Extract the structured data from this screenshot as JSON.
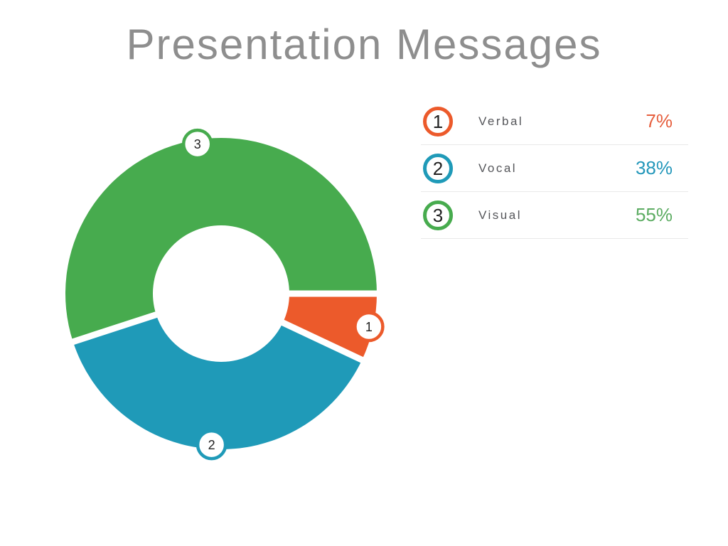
{
  "title": "Presentation Messages",
  "chart_data": {
    "type": "pie",
    "variant": "donut",
    "title": "Presentation Messages",
    "categories": [
      "Verbal",
      "Vocal",
      "Visual"
    ],
    "values": [
      7,
      38,
      55
    ],
    "unit": "%",
    "colors": [
      "#EC5A2B",
      "#1F9AB8",
      "#47AB4E"
    ],
    "slice_numbers": [
      "1",
      "2",
      "3"
    ],
    "start_angle_deg": 0,
    "direction": "clockwise",
    "inner_radius_ratio": 0.44,
    "legend_position": "right",
    "grid": false
  },
  "legend": {
    "items": [
      {
        "number": "1",
        "label": "Verbal",
        "percent": "7%",
        "color": "#EC5A2B",
        "percent_color": "#E65E3D"
      },
      {
        "number": "2",
        "label": "Vocal",
        "percent": "38%",
        "color": "#1F9AB8",
        "percent_color": "#2397BA"
      },
      {
        "number": "3",
        "label": "Visual",
        "percent": "55%",
        "color": "#47AB4E",
        "percent_color": "#5CAC62"
      }
    ]
  },
  "styles": {
    "title_color": "#8E8E8E",
    "label_color": "#55565A",
    "number_color": "#222222",
    "divider_color": "#E9E9E9",
    "background": "#FFFFFF"
  }
}
